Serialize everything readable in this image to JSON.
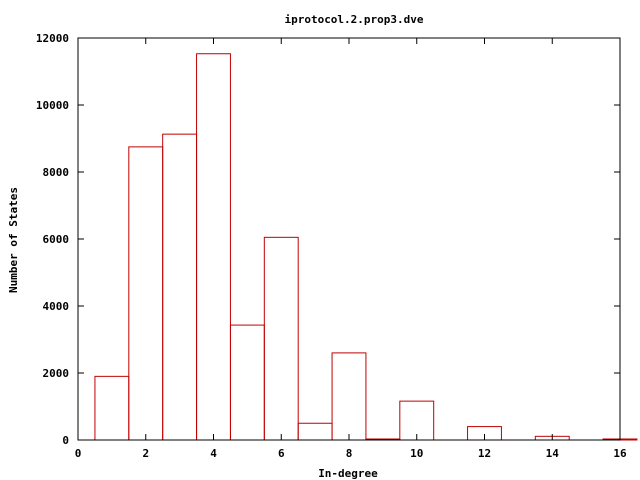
{
  "chart_data": {
    "type": "bar",
    "title": "iprotocol.2.prop3.dve",
    "xlabel": "In-degree",
    "ylabel": "Number of States",
    "xlim": [
      0,
      16
    ],
    "ylim": [
      0,
      12000
    ],
    "x_ticks": [
      "0",
      "2",
      "4",
      "6",
      "8",
      "10",
      "12",
      "14",
      "16"
    ],
    "y_ticks": [
      "0",
      "2000",
      "4000",
      "6000",
      "8000",
      "10000",
      "12000"
    ],
    "bar_width": 1,
    "series": [
      {
        "x": [
          1,
          2,
          3,
          4,
          5,
          6,
          7,
          8,
          9,
          10,
          11,
          12,
          13,
          14,
          15,
          16
        ],
        "values": [
          1900,
          8750,
          9130,
          11530,
          3430,
          6050,
          500,
          2600,
          30,
          1160,
          0,
          400,
          0,
          110,
          0,
          30
        ]
      }
    ],
    "colors": {
      "bar": "#c00000",
      "axis": "#000000"
    },
    "grid": false,
    "legend": "none"
  }
}
